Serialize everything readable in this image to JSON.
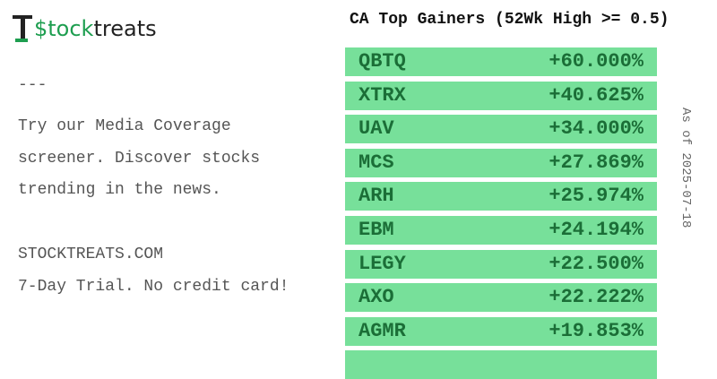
{
  "logo": {
    "accent": "$tock",
    "rest": "treats"
  },
  "sidebar": {
    "divider": "---",
    "promo_lines": [
      "Try our Media Coverage",
      "screener. Discover stocks",
      "trending in the news."
    ],
    "site": "STOCKTREATS.COM",
    "offer": "7-Day Trial. No credit card!"
  },
  "title": "CA Top Gainers (52Wk High >= 0.5)",
  "date_note": "As of 2025-07-18",
  "table": {
    "rows": [
      [
        "QBTQ",
        "+60.000%"
      ],
      [
        "XTRX",
        "+40.625%"
      ],
      [
        "UAV",
        "+34.000%"
      ],
      [
        "MCS",
        "+27.869%"
      ],
      [
        "ARH",
        "+25.974%"
      ],
      [
        "EBM",
        "+24.194%"
      ],
      [
        "LEGY",
        "+22.500%"
      ],
      [
        "AXO",
        "+22.222%"
      ],
      [
        "AGMR",
        "+19.853%"
      ]
    ]
  }
}
